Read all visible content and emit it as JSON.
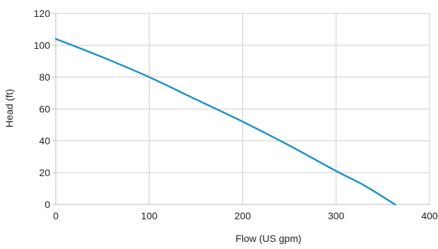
{
  "chart_data": {
    "type": "line",
    "title": "",
    "xlabel": "Flow (US gpm)",
    "ylabel": "Head (ft)",
    "xlim": [
      0,
      400
    ],
    "ylim": [
      0,
      120
    ],
    "xticks": [
      0,
      100,
      200,
      300,
      400
    ],
    "yticks": [
      0,
      20,
      40,
      60,
      80,
      100,
      120
    ],
    "grid": true,
    "legend": "none",
    "colors": {
      "line": "#1f94c6",
      "grid": "#cccccc",
      "axis": "#bbbbbb"
    },
    "series": [
      {
        "x": [
          0,
          50,
          100,
          150,
          200,
          250,
          300,
          330,
          363
        ],
        "y": [
          104,
          92.5,
          80,
          66,
          52,
          37,
          21,
          12,
          0
        ]
      }
    ]
  }
}
